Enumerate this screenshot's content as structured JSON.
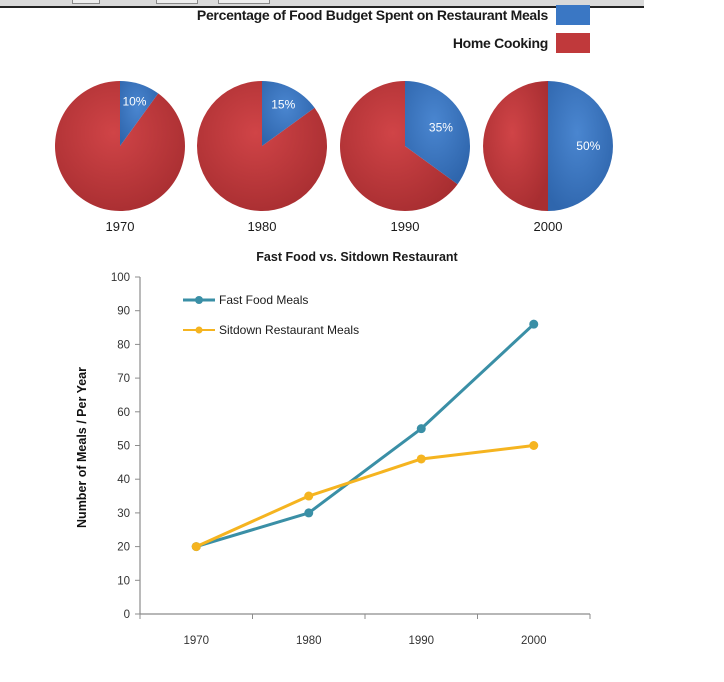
{
  "chart_data": [
    {
      "type": "pie",
      "title": "Percentage of Food Budget Spent on Restaurant Meals",
      "legend": [
        {
          "label": "Percentage of Food Budget Spent on Restaurant Meals",
          "color": "#3a77c4"
        },
        {
          "label": "Home Cooking",
          "color": "#c0393b"
        }
      ],
      "legend_position": "top-right",
      "pies": [
        {
          "year": "1970",
          "restaurant": 10,
          "home": 90,
          "label": "10%"
        },
        {
          "year": "1980",
          "restaurant": 15,
          "home": 85,
          "label": "15%"
        },
        {
          "year": "1990",
          "restaurant": 35,
          "home": 65,
          "label": "35%"
        },
        {
          "year": "2000",
          "restaurant": 50,
          "home": 50,
          "label": "50%"
        }
      ]
    },
    {
      "type": "line",
      "title": "Fast Food vs. Sitdown Restaurant",
      "xlabel": "",
      "ylabel": "Number of Meals / Per Year",
      "categories": [
        "1970",
        "1980",
        "1990",
        "2000"
      ],
      "ylim": [
        0,
        100
      ],
      "yticks": [
        0,
        10,
        20,
        30,
        40,
        50,
        60,
        70,
        80,
        90,
        100
      ],
      "grid": false,
      "legend_position": "top-left",
      "series": [
        {
          "name": "Fast Food Meals",
          "color": "#3a8fa6",
          "values": [
            20,
            30,
            55,
            86
          ]
        },
        {
          "name": "Sitdown Restaurant  Meals",
          "color": "#f5b420",
          "values": [
            20,
            35,
            46,
            50
          ]
        }
      ]
    }
  ]
}
